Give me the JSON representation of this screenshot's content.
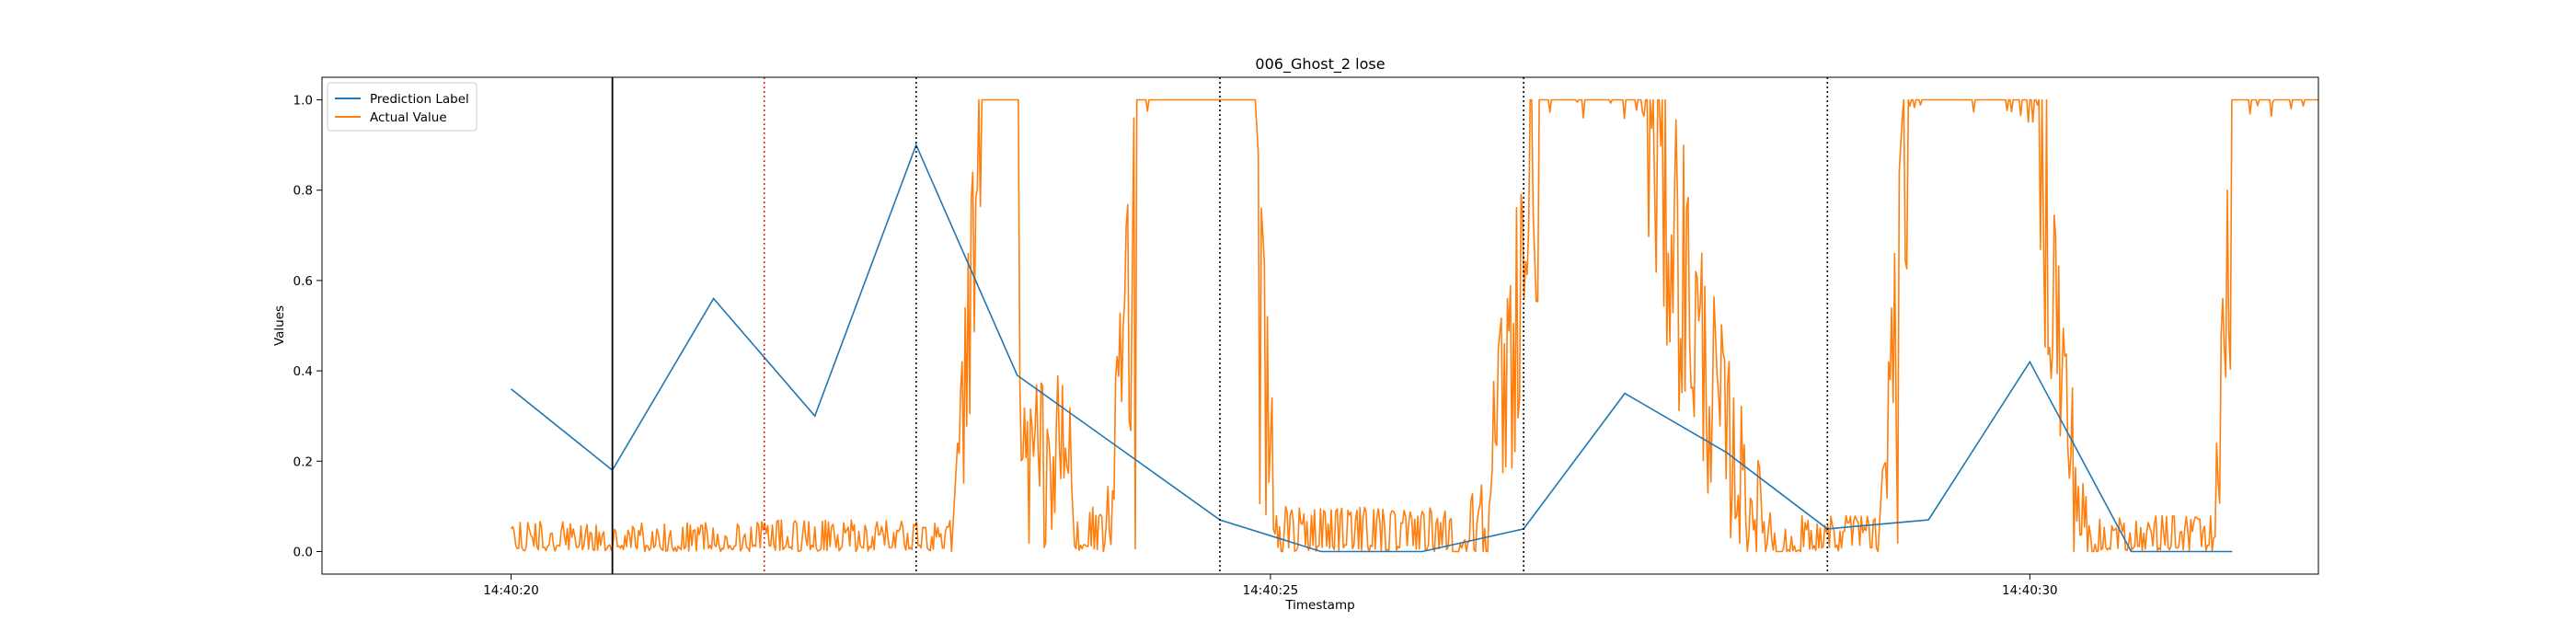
{
  "chart_data": {
    "type": "line",
    "title": "006_Ghost_2 lose",
    "xlabel": "Timestamp",
    "ylabel": "Values",
    "x_unit": "seconds",
    "xlim": [
      "14:40:18.755",
      "14:40:31.900"
    ],
    "ylim": [
      -0.05,
      1.05
    ],
    "xticks": [
      {
        "t": "14:40:20",
        "label": "14:40:20"
      },
      {
        "t": "14:40:25",
        "label": "14:40:25"
      },
      {
        "t": "14:40:30",
        "label": "14:40:30"
      }
    ],
    "yticks": [
      0.0,
      0.2,
      0.4,
      0.6,
      0.8,
      1.0
    ],
    "ytick_labels": [
      "0.0",
      "0.2",
      "0.4",
      "0.6",
      "0.8",
      "1.0"
    ],
    "grid": false,
    "legend_position": "top-left",
    "series": [
      {
        "name": "Prediction Label",
        "color": "#1f77b4",
        "style": "solid",
        "x": [
          "14:40:20.000",
          "14:40:20.667",
          "14:40:21.333",
          "14:40:22.000",
          "14:40:22.667",
          "14:40:23.333",
          "14:40:24.000",
          "14:40:24.667",
          "14:40:25.333",
          "14:40:26.000",
          "14:40:26.667",
          "14:40:27.333",
          "14:40:28.000",
          "14:40:28.667",
          "14:40:29.333",
          "14:40:30.000",
          "14:40:30.667",
          "14:40:31.333"
        ],
        "y": [
          0.36,
          0.18,
          0.56,
          0.3,
          0.9,
          0.39,
          0.23,
          0.07,
          0.0,
          0.0,
          0.05,
          0.35,
          0.22,
          0.05,
          0.07,
          0.42,
          0.0,
          0.0
        ]
      },
      {
        "name": "Actual Value",
        "color": "#ff7f0e",
        "style": "solid",
        "segments": [
          {
            "x_start": "14:40:20.000",
            "x_end": "14:40:22.900",
            "level": "low",
            "value_range": [
              0.0,
              0.07
            ]
          },
          {
            "x_start": "14:40:22.900",
            "x_end": "14:40:23.100",
            "level": "rise",
            "value_range": [
              0.0,
              1.0
            ]
          },
          {
            "x_start": "14:40:23.100",
            "x_end": "14:40:23.350",
            "level": "high",
            "value_range": [
              0.9,
              1.0
            ]
          },
          {
            "x_start": "14:40:23.350",
            "x_end": "14:40:23.700",
            "level": "noisy",
            "value_range": [
              0.0,
              0.4
            ]
          },
          {
            "x_start": "14:40:23.700",
            "x_end": "14:40:23.900",
            "level": "low",
            "value_range": [
              0.0,
              0.1
            ]
          },
          {
            "x_start": "14:40:23.900",
            "x_end": "14:40:24.150",
            "level": "rise",
            "value_range": [
              0.0,
              1.0
            ]
          },
          {
            "x_start": "14:40:24.150",
            "x_end": "14:40:24.900",
            "level": "high",
            "value_range": [
              1.0,
              1.0
            ]
          },
          {
            "x_start": "14:40:24.900",
            "x_end": "14:40:25.100",
            "level": "fall",
            "value_range": [
              0.0,
              1.0
            ]
          },
          {
            "x_start": "14:40:25.100",
            "x_end": "14:40:26.200",
            "level": "low",
            "value_range": [
              0.0,
              0.1
            ]
          },
          {
            "x_start": "14:40:26.200",
            "x_end": "14:40:26.800",
            "level": "rise-noisy",
            "value_range": [
              0.0,
              1.0
            ]
          },
          {
            "x_start": "14:40:26.800",
            "x_end": "14:40:27.450",
            "level": "high",
            "value_range": [
              1.0,
              1.0
            ]
          },
          {
            "x_start": "14:40:27.450",
            "x_end": "14:40:28.500",
            "level": "fall-noisy",
            "value_range": [
              0.0,
              1.0
            ]
          },
          {
            "x_start": "14:40:28.500",
            "x_end": "14:40:29.000",
            "level": "low",
            "value_range": [
              0.0,
              0.08
            ]
          },
          {
            "x_start": "14:40:29.000",
            "x_end": "14:40:29.200",
            "level": "rise",
            "value_range": [
              0.0,
              1.0
            ]
          },
          {
            "x_start": "14:40:29.200",
            "x_end": "14:40:30.050",
            "level": "high",
            "value_range": [
              1.0,
              1.0
            ]
          },
          {
            "x_start": "14:40:30.050",
            "x_end": "14:40:30.450",
            "level": "fall-noisy",
            "value_range": [
              0.0,
              1.0
            ]
          },
          {
            "x_start": "14:40:30.450",
            "x_end": "14:40:31.200",
            "level": "low",
            "value_range": [
              0.0,
              0.08
            ]
          },
          {
            "x_start": "14:40:31.200",
            "x_end": "14:40:31.350",
            "level": "rise",
            "value_range": [
              0.0,
              1.0
            ]
          },
          {
            "x_start": "14:40:31.350",
            "x_end": "14:40:32.000",
            "level": "high",
            "value_range": [
              1.0,
              1.0
            ]
          }
        ]
      }
    ],
    "vlines": [
      {
        "x": "14:40:20.667",
        "color": "#000000",
        "style": "solid"
      },
      {
        "x": "14:40:21.667",
        "color": "#d62728",
        "style": "dotted"
      },
      {
        "x": "14:40:22.667",
        "color": "#000000",
        "style": "dotted"
      },
      {
        "x": "14:40:24.667",
        "color": "#000000",
        "style": "dotted"
      },
      {
        "x": "14:40:26.667",
        "color": "#000000",
        "style": "dotted"
      },
      {
        "x": "14:40:28.667",
        "color": "#000000",
        "style": "dotted"
      }
    ]
  }
}
